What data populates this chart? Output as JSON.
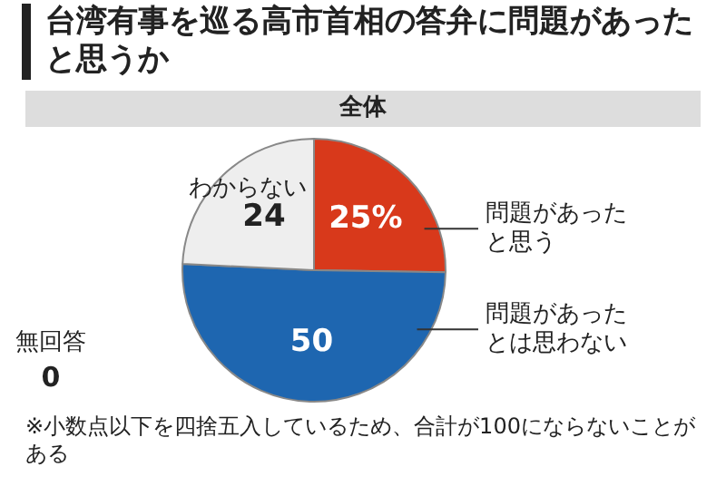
{
  "chart_data": {
    "type": "pie",
    "title": "台湾有事を巡る高市首相の答弁に問題があったと思うか",
    "subtitle": "全体",
    "categories": [
      "問題があったと思う",
      "問題があったとは思わない",
      "わからない",
      "無回答"
    ],
    "values": [
      25,
      50,
      24,
      0
    ],
    "colors": [
      "#d8391b",
      "#1e66b0",
      "#eeeeee",
      "#cccccc"
    ],
    "value_labels": [
      "25%",
      "50",
      "24",
      "0"
    ],
    "legend": false,
    "annotations": [
      "※小数点以下を四捨五入しているため、合計が100にならないことがある"
    ]
  }
}
